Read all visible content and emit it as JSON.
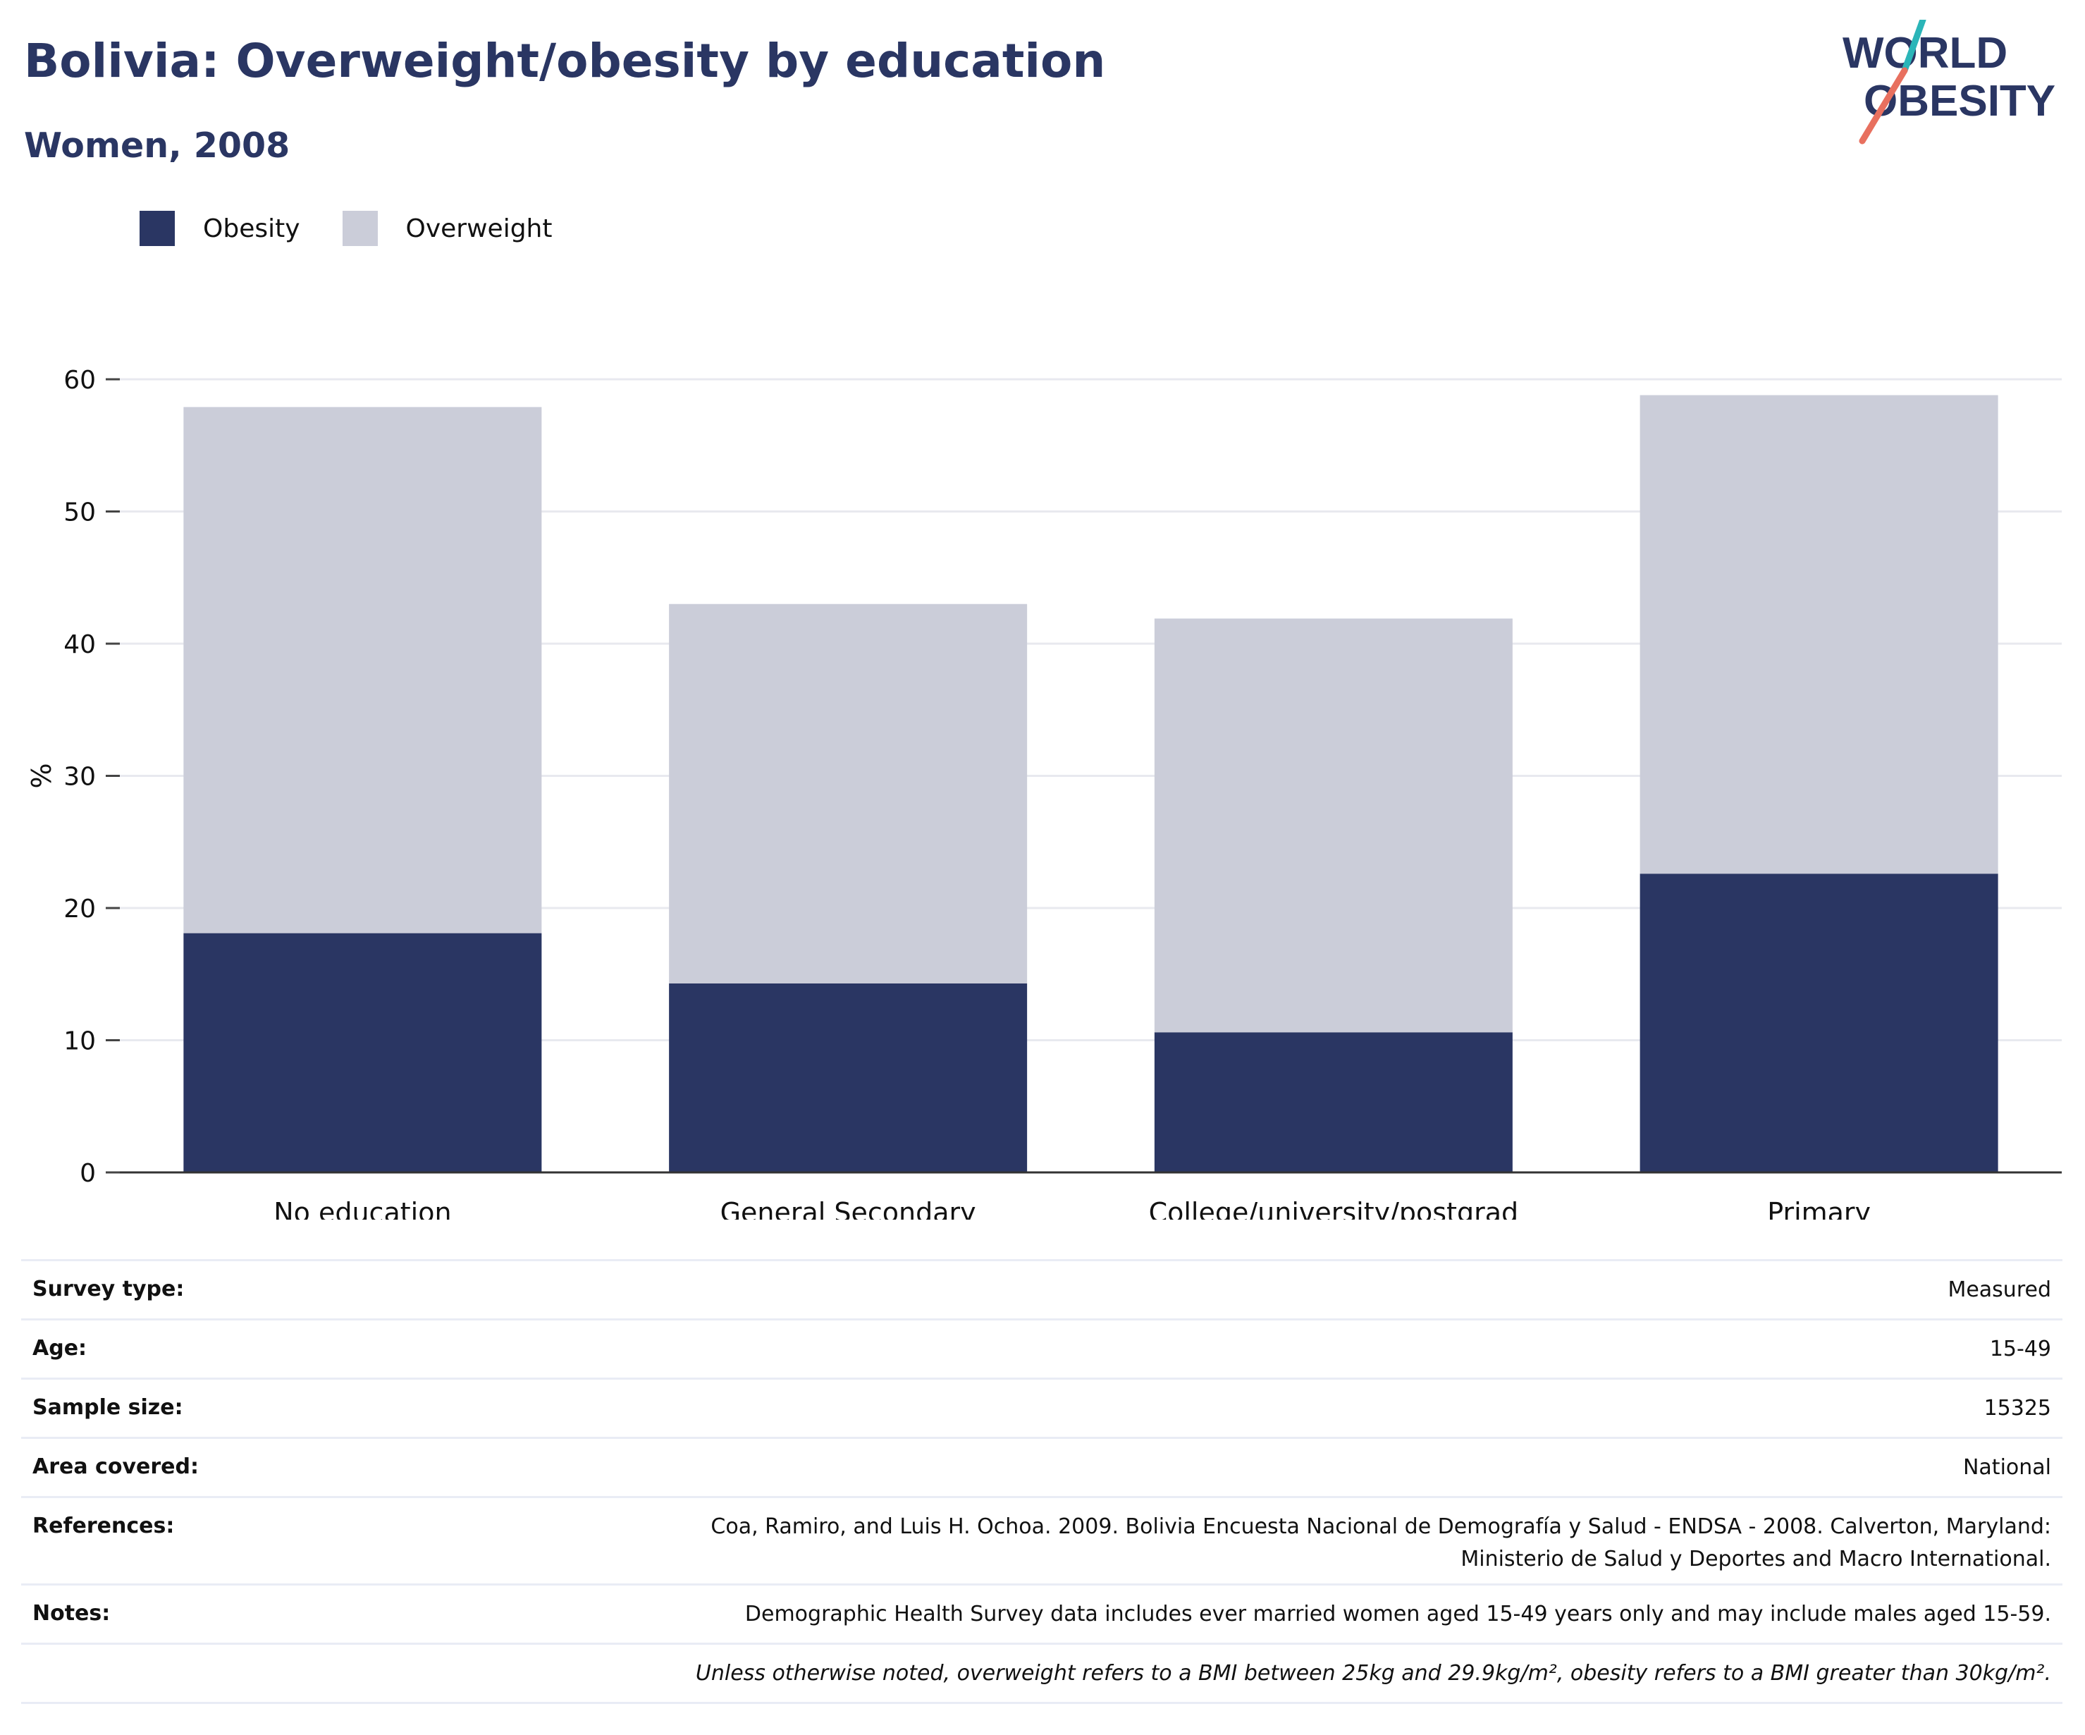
{
  "header": {
    "title": "Bolivia: Overweight/obesity by education",
    "subtitle": "Women, 2008"
  },
  "logo": {
    "line1": "WORLD",
    "line2": "OBESITY",
    "colors": {
      "text": "#2a3663",
      "slash_top": "#2bb5b8",
      "slash_bottom": "#e8705f"
    }
  },
  "legend": {
    "items": [
      {
        "label": "Obesity",
        "color": "#2a3663"
      },
      {
        "label": "Overweight",
        "color": "#cbcdd9"
      }
    ]
  },
  "chart_data": {
    "type": "bar",
    "stacked": true,
    "categories": [
      "No education",
      "General Secondary",
      "College/university/postgrad",
      "Primary"
    ],
    "series": [
      {
        "name": "Obesity",
        "color": "#2a3663",
        "values": [
          18.1,
          14.3,
          10.6,
          22.6
        ]
      },
      {
        "name": "Overweight",
        "color": "#cbcdd9",
        "values": [
          39.8,
          28.7,
          31.3,
          36.2
        ]
      }
    ],
    "ylabel": "%",
    "ylim": [
      0,
      60
    ],
    "yticks": [
      0,
      10,
      20,
      30,
      40,
      50,
      60
    ],
    "grid": true
  },
  "info": {
    "rows": [
      {
        "key": "Survey type:",
        "value": "Measured"
      },
      {
        "key": "Age:",
        "value": "15-49"
      },
      {
        "key": "Sample size:",
        "value": "15325"
      },
      {
        "key": "Area covered:",
        "value": "National"
      },
      {
        "key": "References:",
        "value_lines": [
          "Coa, Ramiro, and Luis H. Ochoa. 2009. Bolivia Encuesta Nacional de Demografía y Salud - ENDSA - 2008. Calverton, Maryland:",
          "Ministerio de Salud y Deportes and Macro International."
        ]
      },
      {
        "key": "Notes:",
        "value": "Demographic Health Survey data includes ever married women aged 15-49 years only and may include males aged 15-59."
      },
      {
        "key": "",
        "value": "Unless otherwise noted, overweight refers to a BMI between 25kg and 29.9kg/m², obesity refers to a BMI greater than 30kg/m²."
      }
    ]
  }
}
